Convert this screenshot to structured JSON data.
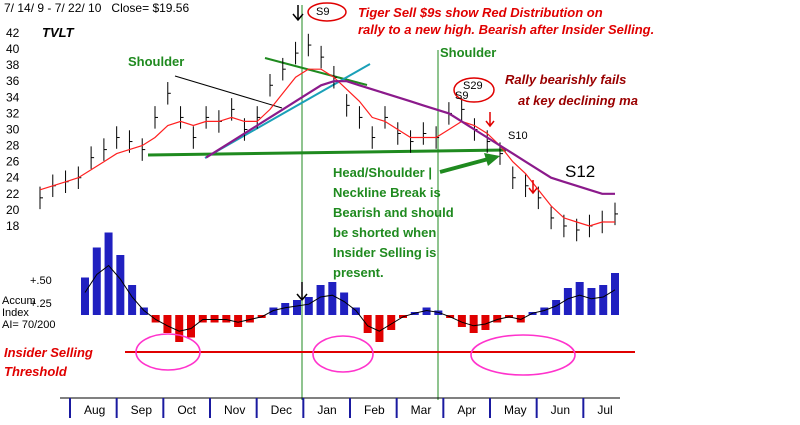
{
  "header": {
    "date_range": "7/ 14/ 9 -  7/ 22/ 10",
    "close_label": "Close= $19.56",
    "symbol": "TVLT"
  },
  "annotations": {
    "tiger_sell": "Tiger Sell $9s show Red Distribution on",
    "tiger_sell_2": "rally to a new high.  Bearish after Insider Selling.",
    "shoulder_left": "Shoulder",
    "shoulder_right": "Shoulder",
    "rally_fails_1": "Rally bearishly fails",
    "rally_fails_2": "at key declining ma",
    "neckline_1": "Head/Shoulder |",
    "neckline_2": "Neckline Break is",
    "neckline_3": "Bearish and should",
    "neckline_4": "be shorted when",
    "neckline_5": "Insider Selling is",
    "neckline_6": "present.",
    "insider_1": "Insider Selling",
    "insider_2": "Threshold"
  },
  "signals": {
    "s9_top": "S9",
    "s9_mid": "S9",
    "s29": "S29",
    "s10": "S10",
    "s12": "S12"
  },
  "indicator": {
    "label_1": "Accum",
    "label_2": "Index",
    "label_3": "AI= 70/200",
    "tick_upper": "+.50",
    "tick_lower": "+.25"
  },
  "colors": {
    "ma_short": "#ff2020",
    "ma_long": "#8b1a8b",
    "neckline": "#1f8a1f",
    "trend_teal": "#1aa0b8",
    "threshold": "#e00000",
    "circle": "#ff33cc",
    "accum_pos": "#2020c0",
    "accum_neg": "#e00000",
    "vline": "#1f8a1f"
  },
  "chart_data": {
    "type": "line",
    "title": "",
    "xlabel": "",
    "ylabel": "",
    "ylim": [
      17,
      43
    ],
    "y_ticks": [
      18,
      20,
      22,
      24,
      26,
      28,
      30,
      32,
      34,
      36,
      38,
      40,
      42
    ],
    "months": [
      "Aug",
      "Sep",
      "Oct",
      "Nov",
      "Dec",
      "Jan",
      "Feb",
      "Mar",
      "Apr",
      "May",
      "Jun",
      "Jul"
    ],
    "price_close": [
      21.5,
      23.0,
      23.5,
      24.0,
      26.5,
      27.5,
      29.0,
      28.5,
      27.5,
      31.5,
      34.5,
      31.5,
      29.0,
      31.5,
      31.0,
      32.5,
      30.0,
      31.5,
      35.5,
      37.5,
      39.5,
      40.5,
      39.0,
      36.5,
      33.0,
      31.5,
      29.0,
      31.5,
      29.5,
      28.5,
      29.5,
      29.0,
      32.0,
      32.5,
      30.0,
      28.5,
      27.0,
      24.0,
      23.0,
      21.5,
      19.0,
      18.0,
      17.5,
      18.0,
      18.5,
      19.5
    ],
    "ma_short": [
      22.5,
      23.0,
      23.5,
      24.0,
      25.0,
      26.0,
      27.0,
      27.5,
      28.0,
      29.0,
      30.5,
      31.0,
      30.5,
      31.0,
      31.0,
      31.5,
      31.0,
      31.0,
      32.5,
      34.5,
      36.5,
      37.5,
      37.5,
      36.5,
      35.0,
      33.5,
      31.5,
      31.0,
      30.0,
      29.0,
      29.0,
      29.0,
      30.0,
      31.0,
      30.5,
      29.5,
      28.0,
      26.0,
      24.5,
      22.5,
      20.5,
      19.0,
      18.5,
      18.0,
      18.5,
      18.5
    ],
    "ma_long": [
      null,
      null,
      null,
      null,
      null,
      null,
      null,
      null,
      null,
      null,
      null,
      null,
      null,
      26.5,
      27.5,
      28.5,
      29.5,
      30.5,
      31.5,
      32.5,
      33.5,
      34.5,
      35.5,
      36.0,
      36.0,
      35.5,
      35.0,
      34.5,
      34.0,
      33.5,
      33.0,
      32.5,
      32.0,
      31.0,
      30.0,
      29.0,
      28.0,
      27.0,
      26.0,
      25.0,
      24.0,
      23.5,
      23.0,
      22.5,
      22.0,
      22.0
    ],
    "accum_index": [
      0.25,
      0.45,
      0.55,
      0.4,
      0.2,
      0.05,
      -0.05,
      -0.12,
      -0.18,
      -0.15,
      -0.05,
      -0.05,
      -0.05,
      -0.08,
      -0.05,
      -0.02,
      0.05,
      0.08,
      0.1,
      0.12,
      0.2,
      0.22,
      0.15,
      0.05,
      -0.12,
      -0.18,
      -0.1,
      -0.02,
      0.02,
      0.05,
      0.03,
      -0.02,
      -0.08,
      -0.12,
      -0.1,
      -0.05,
      -0.02,
      -0.05,
      0.02,
      0.05,
      0.1,
      0.18,
      0.22,
      0.18,
      0.2,
      0.28
    ],
    "insider_threshold": -0.12
  }
}
